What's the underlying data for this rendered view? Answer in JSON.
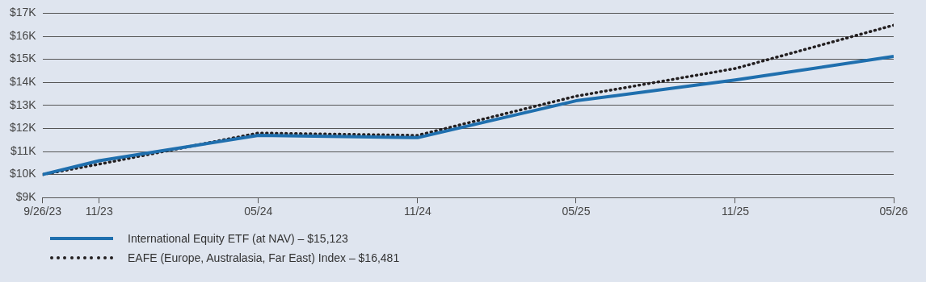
{
  "chart_data": {
    "type": "line",
    "x": [
      "2023-09-26",
      "2023-11-30",
      "2024-05-31",
      "2024-11-30",
      "2025-05-31",
      "2025-11-30",
      "2026-05-31"
    ],
    "series": [
      {
        "name": "International Equity ETF (at NAV) – $15,123",
        "color": "#1f6fae",
        "line_style": "solid",
        "values": [
          10000,
          10600,
          11700,
          11600,
          13200,
          14100,
          15123
        ]
      },
      {
        "name": "EAFE (Europe, Australasia, Far East) Index – $16,481",
        "color": "#231f20",
        "line_style": "dotted",
        "values": [
          10000,
          10450,
          11800,
          11700,
          13400,
          14600,
          16481
        ]
      }
    ],
    "xlim": [
      "2023-09-26",
      "2026-05-31"
    ],
    "xticks": [
      {
        "value": "2023-09-26",
        "label": "9/26/23"
      },
      {
        "value": "2023-11-30",
        "label": "11/23"
      },
      {
        "value": "2024-05-31",
        "label": "05/24"
      },
      {
        "value": "2024-11-30",
        "label": "11/24"
      },
      {
        "value": "2025-05-31",
        "label": "05/25"
      },
      {
        "value": "2025-11-30",
        "label": "11/25"
      },
      {
        "value": "2026-05-31",
        "label": "05/26"
      }
    ],
    "ylim": [
      9000,
      17000
    ],
    "yticks": [
      {
        "value": 9000,
        "label": "$9K"
      },
      {
        "value": 10000,
        "label": "$10K"
      },
      {
        "value": 11000,
        "label": "$11K"
      },
      {
        "value": 12000,
        "label": "$12K"
      },
      {
        "value": 13000,
        "label": "$13K"
      },
      {
        "value": 14000,
        "label": "$14K"
      },
      {
        "value": 15000,
        "label": "$15K"
      },
      {
        "value": 16000,
        "label": "$16K"
      },
      {
        "value": 17000,
        "label": "$17K"
      }
    ],
    "grid": "y",
    "legend": "bottom",
    "marker": "none"
  }
}
